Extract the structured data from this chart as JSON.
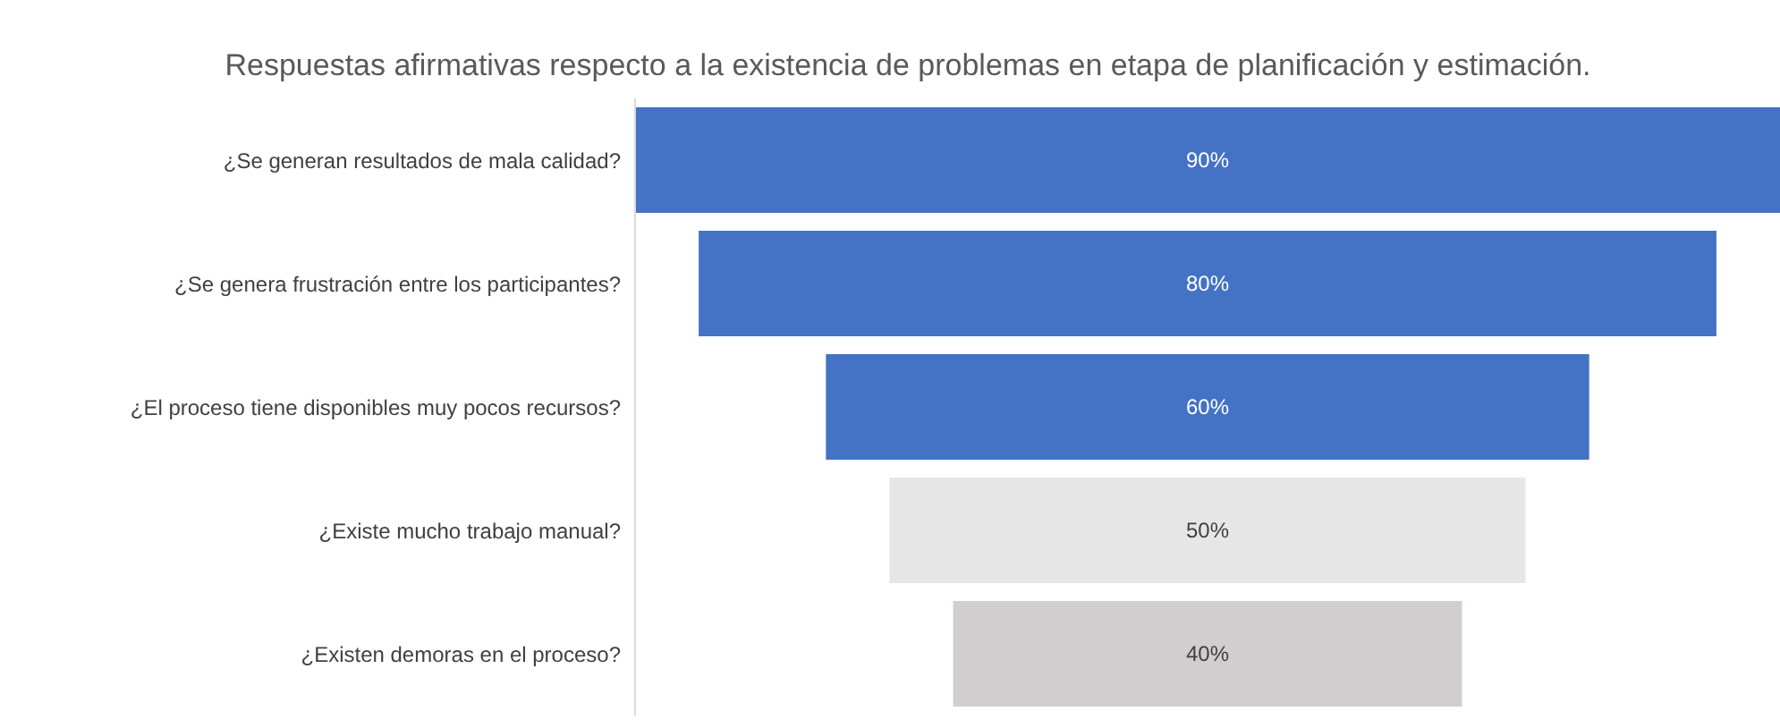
{
  "chart_data": {
    "type": "other",
    "title": "Respuestas afirmativas respecto a la existencia de problemas en etapa de planificación y estimación.",
    "categories": [
      "¿Se generan resultados de mala calidad?",
      "¿Se genera frustración entre los participantes?",
      "¿El proceso tiene disponibles muy pocos recursos?",
      "¿Existe mucho trabajo manual?",
      "¿Existen demoras en el proceso?"
    ],
    "values": [
      90,
      80,
      60,
      50,
      40
    ],
    "value_labels": [
      "90%",
      "80%",
      "60%",
      "50%",
      "40%"
    ],
    "colors": [
      "#4472c4",
      "#4472c4",
      "#4472c4",
      "#e7e6e6",
      "#d0cece"
    ]
  }
}
